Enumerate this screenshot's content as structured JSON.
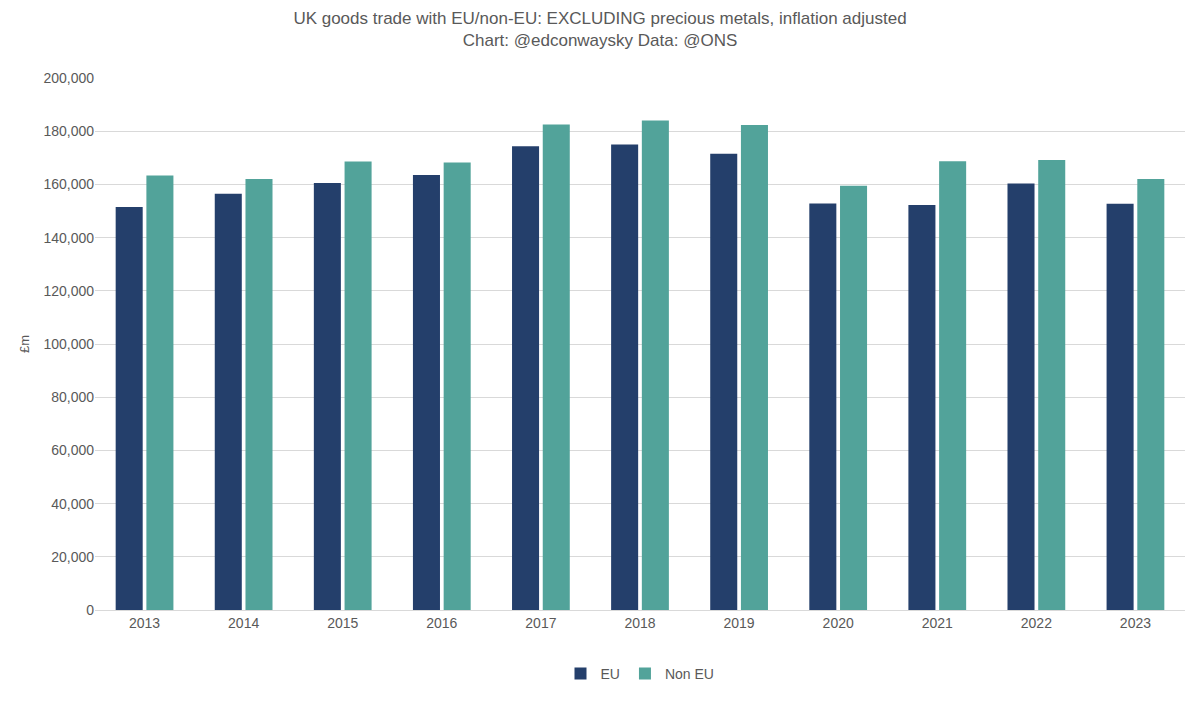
{
  "chart_data": {
    "type": "bar",
    "title": "UK goods trade with EU/non-EU: EXCLUDING precious metals, inflation adjusted",
    "subtitle": "Chart: @edconwaysky Data: @ONS",
    "y_label": "£m",
    "categories": [
      "2013",
      "2014",
      "2015",
      "2016",
      "2017",
      "2018",
      "2019",
      "2020",
      "2021",
      "2022",
      "2023"
    ],
    "series": [
      {
        "name": "EU",
        "color": "#243f6b",
        "values": [
          151500,
          156500,
          160500,
          163500,
          174300,
          175000,
          171500,
          152800,
          152300,
          160300,
          152700
        ]
      },
      {
        "name": "Non EU",
        "color": "#52a39a",
        "values": [
          163300,
          162000,
          168600,
          168200,
          182500,
          184000,
          182300,
          159500,
          168700,
          169200,
          162000
        ]
      }
    ],
    "ylim": [
      0,
      200000
    ],
    "yticks": [
      0,
      {
        "value": 20000,
        "label": "20,000"
      },
      {
        "value": 40000,
        "label": "40,000"
      },
      {
        "value": 60000,
        "label": "60,000"
      },
      {
        "value": 80000,
        "label": "80,000"
      },
      {
        "value": 100000,
        "label": "100,000"
      },
      {
        "value": 120000,
        "label": "120,000"
      },
      {
        "value": 140000,
        "label": "140,000"
      },
      {
        "value": 160000,
        "label": "160,000"
      },
      {
        "value": 180000,
        "label": "180,000"
      },
      {
        "value": 200000,
        "label": "200,000"
      }
    ],
    "grid": true,
    "legend": "bottom"
  }
}
